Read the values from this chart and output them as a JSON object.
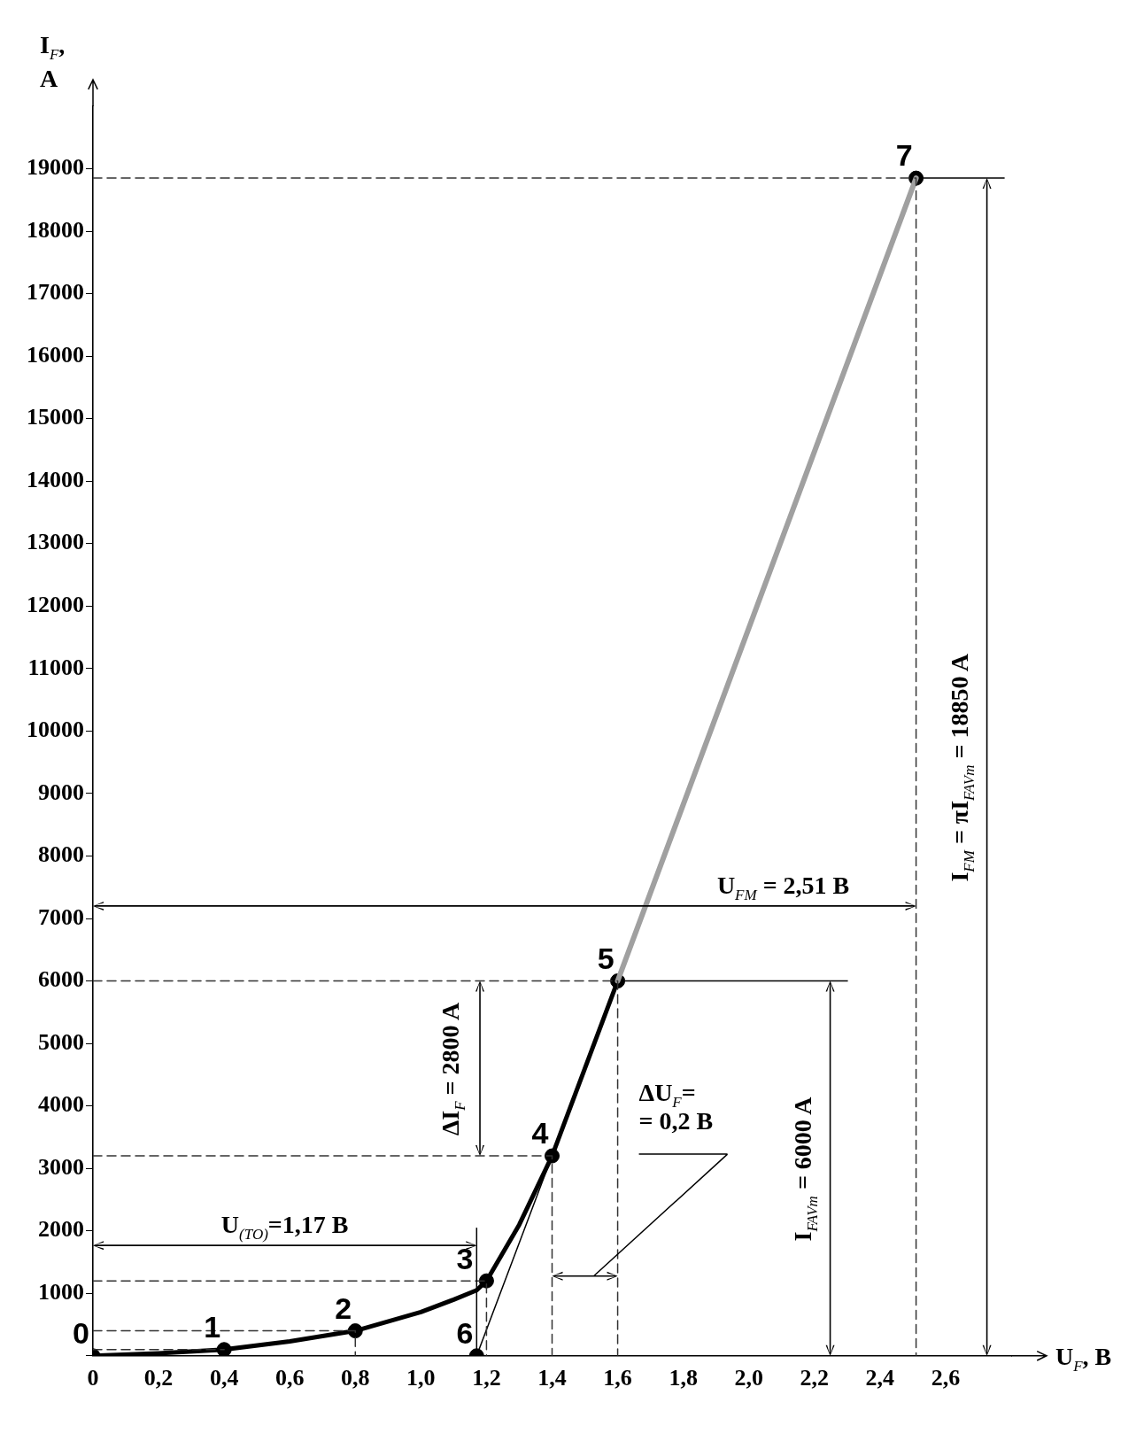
{
  "chart_data": {
    "type": "line",
    "xlabel": "U$_{F}$, B",
    "ylabel": "I$_{F}$, A",
    "xlim": [
      0,
      2.8
    ],
    "ylim": [
      0,
      20000
    ],
    "xticks": [
      {
        "value": 0,
        "label": "0"
      },
      {
        "value": 0.2,
        "label": "0,2"
      },
      {
        "value": 0.4,
        "label": "0,4"
      },
      {
        "value": 0.6,
        "label": "0,6"
      },
      {
        "value": 0.8,
        "label": "0,8"
      },
      {
        "value": 1.0,
        "label": "1,0"
      },
      {
        "value": 1.2,
        "label": "1,2"
      },
      {
        "value": 1.4,
        "label": "1,4"
      },
      {
        "value": 1.6,
        "label": "1,6"
      },
      {
        "value": 1.8,
        "label": "1,8"
      },
      {
        "value": 2.0,
        "label": "2,0"
      },
      {
        "value": 2.2,
        "label": "2,2"
      },
      {
        "value": 2.4,
        "label": "2,4"
      },
      {
        "value": 2.6,
        "label": "2,6"
      }
    ],
    "yticks": [
      {
        "value": 0,
        "label": null
      },
      1000,
      2000,
      3000,
      4000,
      5000,
      6000,
      7000,
      8000,
      9000,
      10000,
      11000,
      12000,
      13000,
      14000,
      15000,
      16000,
      17000,
      18000,
      19000
    ],
    "grid": false,
    "legend": false,
    "series": [
      {
        "type": "line",
        "color": "#333333",
        "line_style": "dashed",
        "x": [
          0,
          2.51,
          2.51
        ],
        "values": [
          18850,
          18850,
          0
        ]
      },
      {
        "type": "line",
        "color": "#333333",
        "line_style": "dashed",
        "x": [
          0,
          1.6,
          1.6
        ],
        "values": [
          6000,
          6000,
          0
        ]
      },
      {
        "type": "line",
        "color": "#333333",
        "line_style": "dashed",
        "x": [
          0,
          1.4,
          1.4
        ],
        "values": [
          3200,
          3200,
          0
        ]
      },
      {
        "type": "line",
        "color": "#333333",
        "line_style": "dashed",
        "x": [
          0,
          1.2,
          1.2
        ],
        "values": [
          1200,
          1200,
          0
        ]
      },
      {
        "type": "line",
        "color": "#333333",
        "line_style": "dashed",
        "x": [
          0,
          0.8,
          0.8
        ],
        "values": [
          400,
          400,
          0
        ]
      },
      {
        "type": "line",
        "color": "#333333",
        "line_style": "dashed",
        "x": [
          0,
          0.4
        ],
        "values": [
          100,
          100
        ]
      },
      {
        "type": "line",
        "color": "#000000",
        "line_style": "solid",
        "x": [
          1.17,
          1.4
        ],
        "values": [
          0,
          3200
        ]
      },
      {
        "type": "line",
        "color": "#a0a0a0",
        "line_style": "solid",
        "x": [
          1.6,
          2.51
        ],
        "values": [
          6000,
          18850
        ]
      },
      {
        "type": "line",
        "color": "#000000",
        "line_style": "solid",
        "x": [
          0,
          0.2,
          0.4,
          0.6,
          0.8,
          1.0,
          1.1,
          1.17,
          1.2,
          1.3,
          1.4,
          1.5,
          1.6
        ],
        "values": [
          0,
          40,
          100,
          230,
          400,
          700,
          900,
          1050,
          1200,
          2100,
          3200,
          4600,
          6000
        ]
      },
      {
        "type": "scatter",
        "color": "#000000",
        "marker": "circle",
        "x": [
          0,
          0.4,
          0.8,
          1.2,
          1.4,
          1.6,
          1.17,
          2.51
        ],
        "values": [
          0,
          100,
          400,
          1200,
          3200,
          6000,
          0,
          18850
        ]
      }
    ],
    "annotations": [
      {
        "text": "U$_{FM}$ = 2,51 B",
        "x": 2.51,
        "y": 7200
      },
      "I$_{FM}$ = πI$_{FAVm}$ = 18850 A",
      {
        "text": "ΔI$_{F}$ = 2800 A",
        "x": 1.18,
        "y": 6000
      },
      "ΔU$_{F}$=\n= 0,2 B",
      "U$_{(TO)}$=1,17 B",
      "I$_{FAVm}$ = 6000 A",
      {
        "text": "0",
        "x": 0,
        "y": 0
      },
      {
        "text": "1",
        "x": 0.4,
        "y": 100
      },
      {
        "text": "2",
        "x": 0.8,
        "y": 400
      },
      {
        "text": "3",
        "x": 1.2,
        "y": 1200
      },
      {
        "text": "4",
        "x": 1.4,
        "y": 3200
      },
      {
        "text": "5",
        "x": 1.6,
        "y": 6000
      },
      {
        "text": "6",
        "x": 1.17,
        "y": 0
      },
      {
        "text": "7",
        "x": 2.51,
        "y": 18850
      }
    ]
  }
}
